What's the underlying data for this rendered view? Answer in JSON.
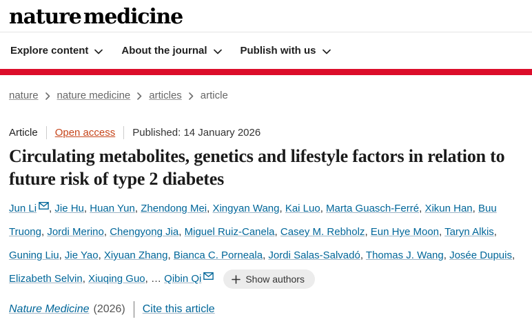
{
  "colors": {
    "accent_red": "#dc0d2a",
    "link_blue": "#006699",
    "open_access": "#c6451a"
  },
  "header": {
    "logo": "nature medicine",
    "nav": [
      {
        "label": "Explore content",
        "icon": "chevron-down-icon"
      },
      {
        "label": "About the journal",
        "icon": "chevron-down-icon"
      },
      {
        "label": "Publish with us",
        "icon": "chevron-down-icon"
      }
    ]
  },
  "breadcrumb": {
    "items": [
      {
        "label": "nature",
        "link": true
      },
      {
        "label": "nature medicine",
        "link": true
      },
      {
        "label": "articles",
        "link": true
      },
      {
        "label": "article",
        "link": false
      }
    ],
    "separator_icon": "chevron-right-icon"
  },
  "article": {
    "type_label": "Article",
    "access_label": "Open access",
    "published_label": "Published: 14 January 2026",
    "title": "Circulating metabolites, genetics and lifestyle factors in relation to future risk of type 2 diabetes",
    "ellipsis": "…",
    "show_authors_label": "Show authors",
    "show_authors_icon": "plus-icon",
    "email_icon": "envelope-icon",
    "authors": [
      {
        "name": "Jun Li",
        "email": true
      },
      {
        "name": "Jie Hu"
      },
      {
        "name": "Huan Yun"
      },
      {
        "name": "Zhendong Mei"
      },
      {
        "name": "Xingyan Wang"
      },
      {
        "name": "Kai Luo"
      },
      {
        "name": "Marta Guasch-Ferré"
      },
      {
        "name": "Xikun Han"
      },
      {
        "name": "Buu Truong"
      },
      {
        "name": "Jordi Merino"
      },
      {
        "name": "Chengyong Jia"
      },
      {
        "name": "Miguel Ruiz-Canela"
      },
      {
        "name": "Casey M. Rebholz"
      },
      {
        "name": "Eun Hye Moon"
      },
      {
        "name": "Taryn Alkis"
      },
      {
        "name": "Guning Liu"
      },
      {
        "name": "Jie Yao"
      },
      {
        "name": "Xiyuan Zhang"
      },
      {
        "name": "Bianca C. Porneala"
      },
      {
        "name": "Jordi Salas-Salvadó"
      },
      {
        "name": "Thomas J. Wang"
      },
      {
        "name": "Josée Dupuis"
      },
      {
        "name": "Elizabeth Selvin"
      },
      {
        "name": "Xiuqing Guo"
      },
      {
        "name": "Qibin Qi",
        "email": true,
        "ellipsis_before": true
      }
    ]
  },
  "citation": {
    "journal": "Nature Medicine",
    "year_label": "(2026)",
    "cite_label": "Cite this article"
  }
}
